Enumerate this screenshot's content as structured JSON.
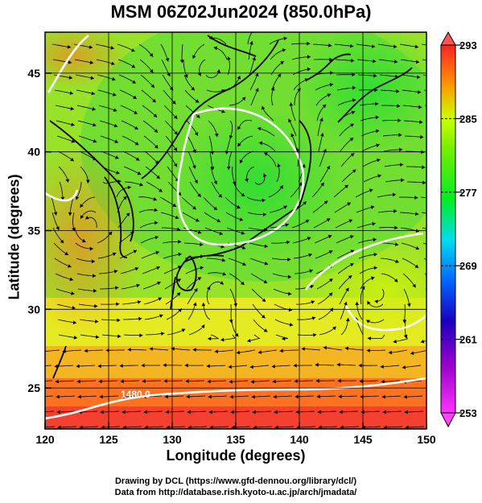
{
  "title": "MSM 06Z02Jun2024 (850.0hPa)",
  "xlabel": "Longitude (degrees)",
  "ylabel": "Latitude  (degrees)",
  "x_ticks": [
    120,
    125,
    130,
    135,
    140,
    145,
    150
  ],
  "y_ticks": [
    25,
    30,
    35,
    40,
    45
  ],
  "xlim": [
    120,
    150
  ],
  "ylim": [
    22.4,
    47.6
  ],
  "colorbar": {
    "ticks": [
      253,
      261,
      269,
      277,
      285,
      293
    ],
    "range": [
      253,
      293
    ],
    "colors": [
      "#ff33ff",
      "#1a00c0",
      "#0088ff",
      "#00ffcc",
      "#00ee22",
      "#ccff00",
      "#ff8800",
      "#ff2222"
    ]
  },
  "contour_label": "1480.0",
  "credit_line1": "Drawing by DCL (https://www.gfd-dennou.org/library/dcl/)",
  "credit_line2": "Data from http://database.rish.kyoto-u.ac.jp/arch/jmadata/"
}
